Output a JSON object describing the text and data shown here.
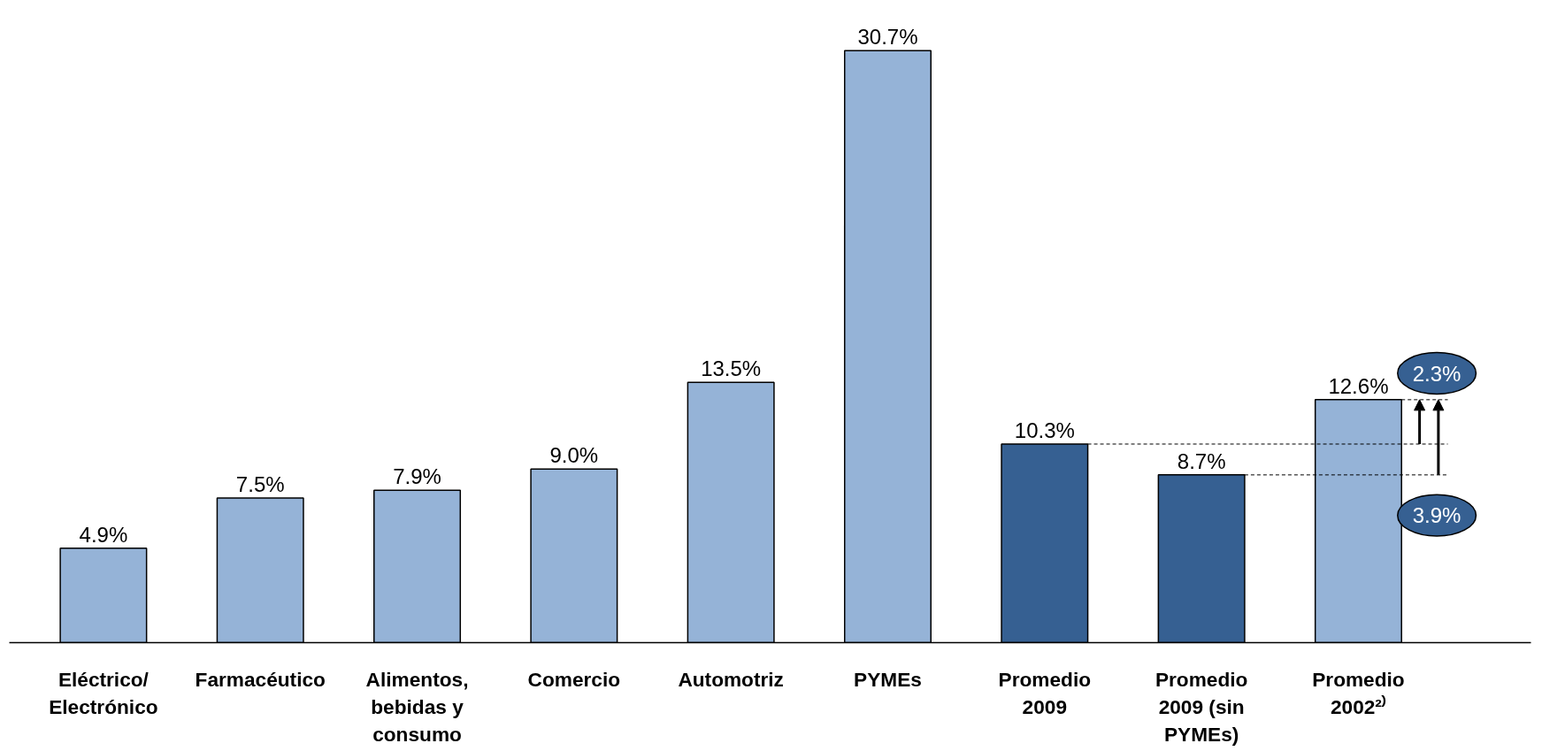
{
  "chart_data": {
    "type": "bar",
    "categories": [
      "Eléctrico/\nElectrónico",
      "Farmacéutico",
      "Alimentos,\nbebidas y\nconsumo",
      "Comercio",
      "Automotriz",
      "PYMEs",
      "Promedio\n2009",
      "Promedio\n2009 (sin\nPYMEs)",
      "Promedio\n2002²⁾"
    ],
    "values": [
      4.9,
      7.5,
      7.9,
      9.0,
      13.5,
      30.7,
      10.3,
      8.7,
      12.6
    ],
    "colors": [
      "#95b3d7",
      "#95b3d7",
      "#95b3d7",
      "#95b3d7",
      "#95b3d7",
      "#95b3d7",
      "#366092",
      "#366092",
      "#95b3d7"
    ],
    "value_labels": [
      "4.9%",
      "7.5%",
      "7.9%",
      "9.0%",
      "13.5%",
      "30.7%",
      "10.3%",
      "8.7%",
      "12.6%"
    ],
    "annotations": [
      "2.3%",
      "3.9%"
    ],
    "grid": false
  }
}
